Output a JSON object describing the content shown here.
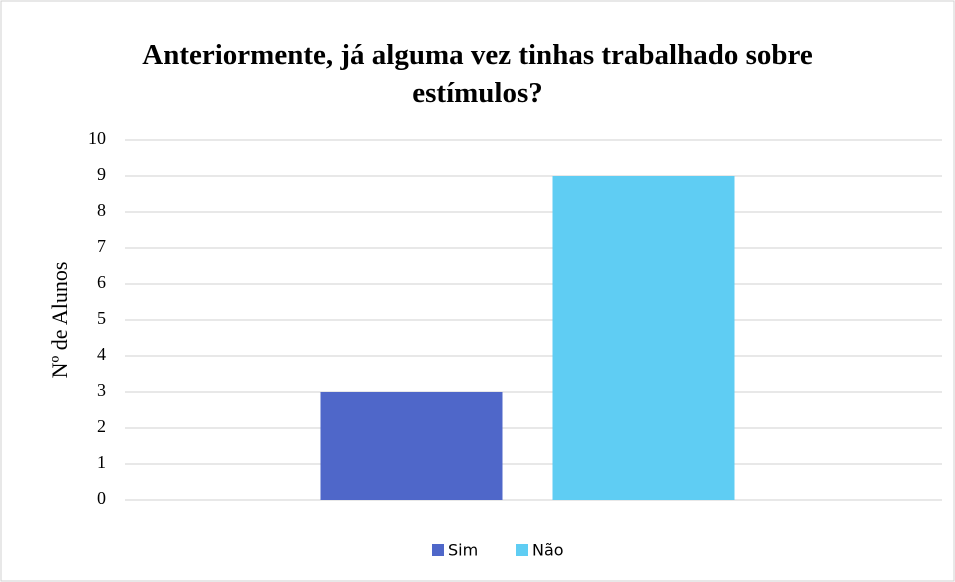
{
  "chart_data": {
    "type": "bar",
    "title": "Anteriormente, já alguma vez tinhas trabalhado sobre estímulos?",
    "ylabel": "Nº de Alunos",
    "categories": [
      null
    ],
    "series": [
      {
        "name": "Sim",
        "color": "#4f67c9",
        "values": [
          3
        ]
      },
      {
        "name": "Não",
        "color": "#5fcdf3",
        "values": [
          9
        ]
      }
    ],
    "ylim": [
      0,
      10
    ],
    "yticks": [
      0,
      1,
      2,
      3,
      4,
      5,
      6,
      7,
      8,
      9,
      10
    ],
    "grid": true,
    "legend": "bottom"
  }
}
